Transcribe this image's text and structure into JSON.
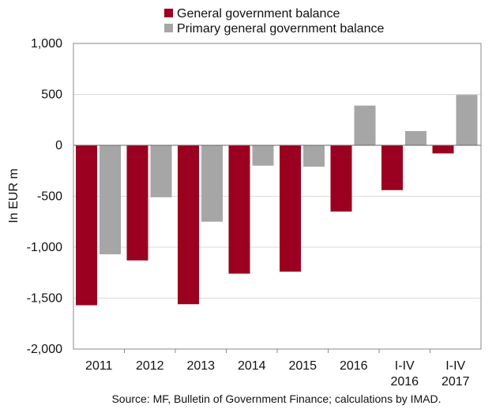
{
  "chart_data": {
    "type": "bar",
    "categories": [
      [
        "2011"
      ],
      [
        "2012"
      ],
      [
        "2013"
      ],
      [
        "2014"
      ],
      [
        "2015"
      ],
      [
        "2016"
      ],
      [
        "I-IV",
        "2016"
      ],
      [
        "I-IV",
        "2017"
      ]
    ],
    "series": [
      {
        "name": "General government balance",
        "color": "#9b0020",
        "values": [
          -1570,
          -1130,
          -1560,
          -1260,
          -1240,
          -650,
          -440,
          -80
        ]
      },
      {
        "name": "Primary general government balance",
        "color": "#a6a6a6",
        "values": [
          -1070,
          -510,
          -750,
          -200,
          -210,
          390,
          140,
          495
        ]
      }
    ],
    "ylabel": "In EUR m",
    "ylim": [
      -2000,
      1000
    ],
    "yticks": [
      1000,
      500,
      0,
      -500,
      -1000,
      -1500,
      -2000
    ],
    "ytick_labels": [
      "1,000",
      "500",
      "0",
      "-500",
      "-1,000",
      "-1,500",
      "-2,000"
    ],
    "grid": true,
    "legend_position": "top-center",
    "source": "Source: MF, Bulletin of Government Finance; calculations by IMAD."
  }
}
